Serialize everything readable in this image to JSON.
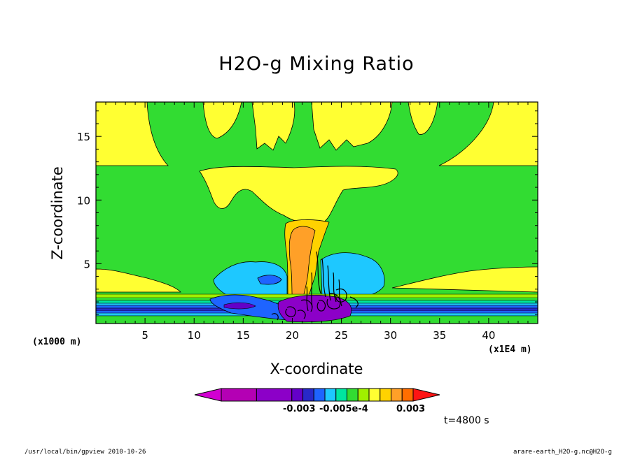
{
  "chart_data": {
    "type": "heatmap",
    "title": "H2O-g Mixing Ratio",
    "xlabel": "X-coordinate",
    "ylabel": "Z-coordinate",
    "x_unit_left": "(x1000 m)",
    "x_unit_right": "(x1E4 m)",
    "x_ticks": [
      5,
      10,
      15,
      20,
      25,
      30,
      35,
      40
    ],
    "y_ticks": [
      5,
      10,
      15
    ],
    "xlim": [
      0,
      45
    ],
    "ylim": [
      0.3,
      17.7
    ],
    "colorbar": {
      "colors": [
        "#d200d2",
        "#b400b4",
        "#8c00c8",
        "#6400c8",
        "#2828c8",
        "#1e64ff",
        "#1ec8ff",
        "#00e6a0",
        "#32dc32",
        "#a0f000",
        "#ffff32",
        "#ffd200",
        "#ffa028",
        "#ff6e00",
        "#ff1414"
      ],
      "tick_labels": [
        "-0.003",
        "-0.005e-4",
        "0.003"
      ]
    },
    "time_label": "t=4800 s"
  },
  "footer": {
    "left": "/usr/local/bin/gpview  2010-10-26",
    "right": "arare-earth_H2O-g.nc@H2O-g"
  },
  "colors": {
    "background_field": "#32dc32",
    "yellow": "#ffff32",
    "light_orange": "#ffd200",
    "orange": "#ffa028",
    "cyan": "#1ec8ff",
    "blue": "#1e64ff",
    "dark_blue": "#2828c8",
    "purple": "#6400c8"
  }
}
